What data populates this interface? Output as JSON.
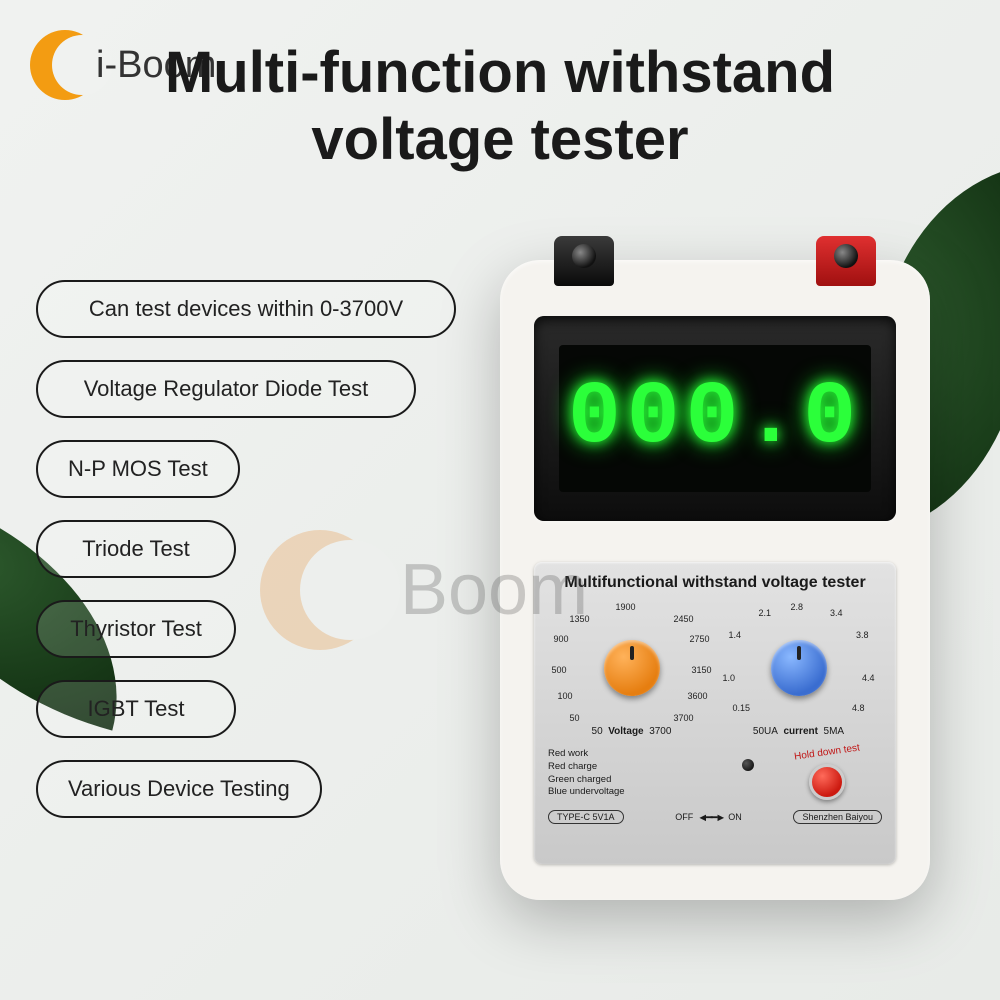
{
  "logo": {
    "text": "i-Boom"
  },
  "title": "Multi-function withstand\nvoltage tester",
  "features": [
    "Can test devices within 0-3700V",
    "Voltage Regulator Diode Test",
    "N-P MOS Test",
    "Triode Test",
    "Thyristor Test",
    "IGBT Test",
    "Various Device Testing"
  ],
  "watermark": "i-Boom",
  "device": {
    "display_value": "000.0",
    "display_color": "#2bff3a",
    "panel_title": "Multifunctional withstand voltage tester",
    "voltage_knob": {
      "color": "#e67e10",
      "label": "Voltage",
      "min_label": "50",
      "max_label": "3700",
      "ticks": [
        "50",
        "100",
        "500",
        "900",
        "1350",
        "1900",
        "2450",
        "2750",
        "3150",
        "3600",
        "3700"
      ]
    },
    "current_knob": {
      "color": "#3a6dd0",
      "label": "current",
      "min_label": "50UA",
      "max_label": "5MA",
      "ticks": [
        "0.15",
        "1.0",
        "1.4",
        "2.1",
        "2.8",
        "3.4",
        "3.8",
        "4.4",
        "4.8"
      ]
    },
    "status_lines": [
      "Red work",
      "Red charge",
      "Green charged",
      "Blue undervoltage"
    ],
    "test_button_label": "Hold down test",
    "power_port": "TYPE-C  5V1A",
    "switch": {
      "off": "OFF",
      "on": "ON"
    },
    "manufacturer": "Shenzhen Baiyou"
  },
  "colors": {
    "background": "#f0f2f0",
    "text": "#1a1a1a",
    "accent_orange": "#f39c12",
    "lcd_bg": "#050705",
    "panel_bg": "#d7d7d7"
  }
}
